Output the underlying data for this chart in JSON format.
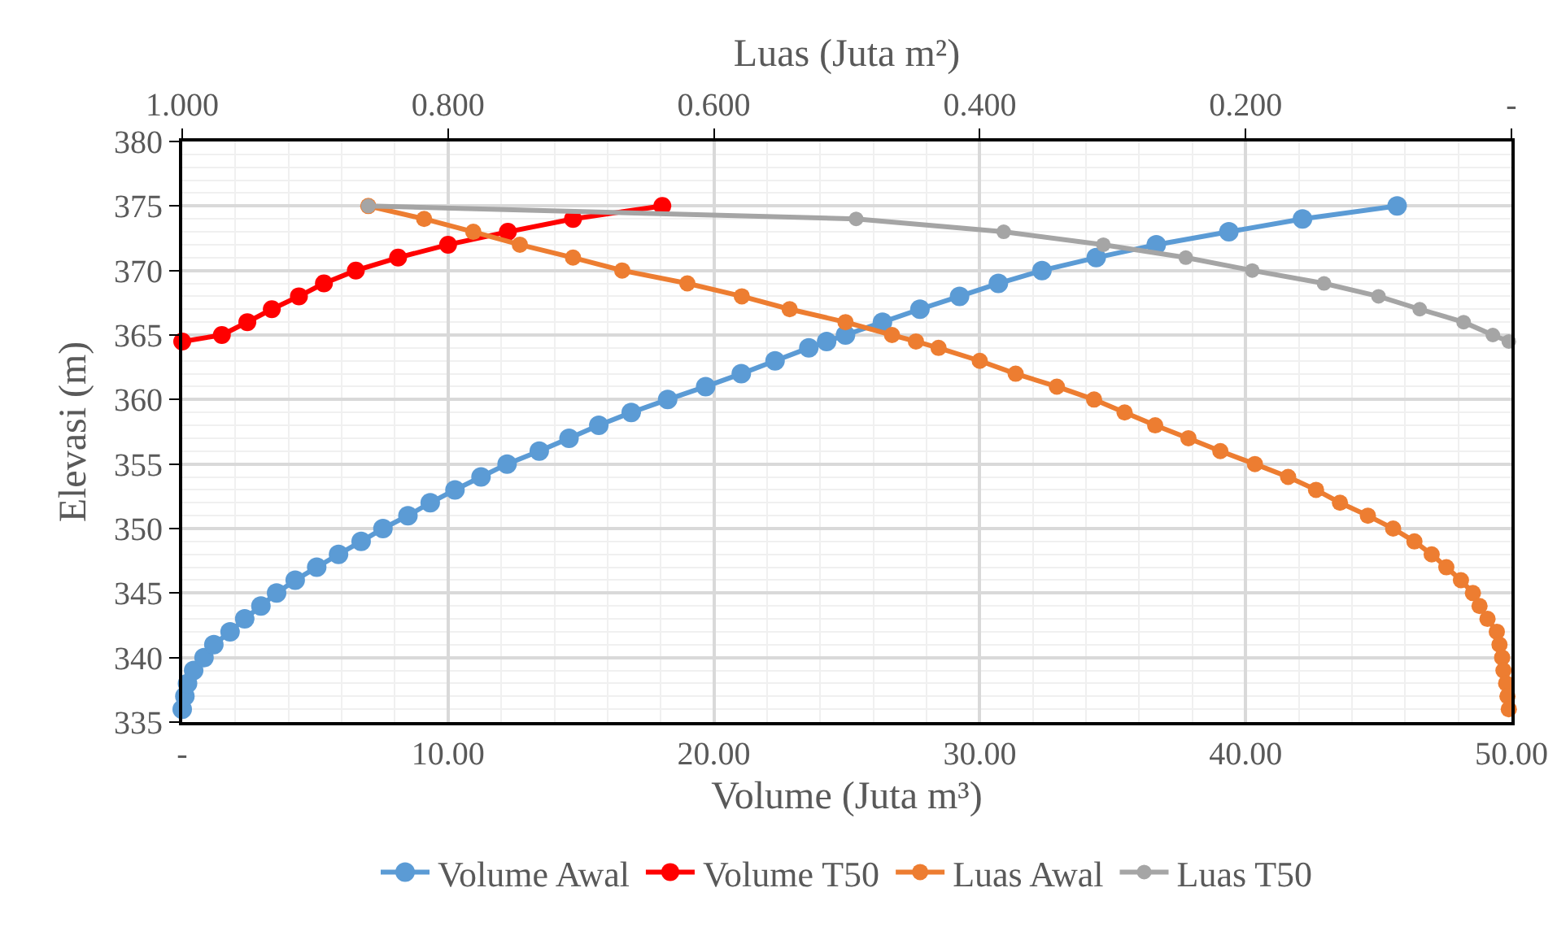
{
  "chart_data": {
    "type": "line",
    "xlabel": "Volume (Juta m³)",
    "x2label": "Luas (Juta m²)",
    "ylabel": "Elevasi (m)",
    "xlim": [
      0,
      50
    ],
    "xticks": [
      {
        "value": 0,
        "label": "-"
      },
      {
        "value": 10,
        "label": "10.00"
      },
      {
        "value": 20,
        "label": "20.00"
      },
      {
        "value": 30,
        "label": "30.00"
      },
      {
        "value": 40,
        "label": "40.00"
      },
      {
        "value": 50,
        "label": "50.00"
      }
    ],
    "x2lim": [
      1,
      0
    ],
    "x2ticks": [
      {
        "value": 1,
        "label": "1.000"
      },
      {
        "value": 0.8,
        "label": "0.800"
      },
      {
        "value": 0.6,
        "label": "0.600"
      },
      {
        "value": 0.4,
        "label": "0.400"
      },
      {
        "value": 0.2,
        "label": "0.200"
      },
      {
        "value": 0,
        "label": "-"
      }
    ],
    "ylim": [
      335,
      380
    ],
    "yticks": [
      335,
      340,
      345,
      350,
      355,
      360,
      365,
      370,
      375,
      380
    ],
    "grid": true,
    "legend": "bottom",
    "marker": "circle",
    "line_style": "solid",
    "series": [
      {
        "name": "Volume Awal",
        "color": "#5b9bd5",
        "x": [
          0,
          0.1,
          0.2,
          0.43,
          0.82,
          1.19,
          1.8,
          2.35,
          2.96,
          3.55,
          4.25,
          5.06,
          5.88,
          6.73,
          7.55,
          8.49,
          9.33,
          10.26,
          11.24,
          12.22,
          13.43,
          14.55,
          15.67,
          16.89,
          18.26,
          19.69,
          21.03,
          22.3,
          23.57,
          24.24,
          24.95,
          26.34,
          27.75,
          29.24,
          30.7,
          32.34,
          34.38,
          36.64,
          39.37,
          42.14,
          45.7
        ],
        "values": [
          336,
          337,
          338,
          339,
          340,
          341,
          342,
          343,
          344,
          345,
          346,
          347,
          348,
          349,
          350,
          351,
          352,
          353,
          354,
          355,
          356,
          357,
          358,
          359,
          360,
          361,
          362,
          363,
          364,
          364.5,
          365,
          366,
          367,
          368,
          369,
          370,
          371,
          372,
          373,
          374,
          375
        ]
      },
      {
        "name": "Volume T50",
        "color": "#ff0000",
        "x": [
          0,
          1.49,
          2.45,
          3.37,
          4.39,
          5.33,
          6.53,
          8.12,
          10.0,
          12.25,
          14.7,
          18.06
        ],
        "values": [
          364.5,
          365,
          366,
          367,
          368,
          369,
          370,
          371,
          372,
          373,
          374,
          375
        ]
      },
      {
        "name": "Luas Awal",
        "color": "#ed7d31",
        "axis": "x2",
        "x": [
          0.86,
          0.818,
          0.781,
          0.746,
          0.706,
          0.669,
          0.62,
          0.579,
          0.543,
          0.501,
          0.466,
          0.448,
          0.431,
          0.4,
          0.373,
          0.342,
          0.314,
          0.291,
          0.268,
          0.243,
          0.219,
          0.193,
          0.168,
          0.147,
          0.129,
          0.108,
          0.089,
          0.073,
          0.06,
          0.049,
          0.038,
          0.029,
          0.024,
          0.018,
          0.011,
          0.009,
          0.007,
          0.006,
          0.004,
          0.003,
          0.002
        ],
        "values": [
          375,
          374,
          373,
          372,
          371,
          370,
          369,
          368,
          367,
          366,
          365,
          364.5,
          364,
          363,
          362,
          361,
          360,
          359,
          358,
          357,
          356,
          355,
          354,
          353,
          352,
          351,
          350,
          349,
          348,
          347,
          346,
          345,
          344,
          343,
          342,
          341,
          340,
          339,
          338,
          337,
          336
        ]
      },
      {
        "name": "Luas T50",
        "color": "#a5a5a5",
        "axis": "x2",
        "x": [
          0.86,
          0.493,
          0.382,
          0.307,
          0.245,
          0.195,
          0.141,
          0.1,
          0.069,
          0.036,
          0.014,
          0.002
        ],
        "values": [
          375,
          374,
          373,
          372,
          371,
          370,
          369,
          368,
          367,
          366,
          365,
          364.5
        ]
      }
    ]
  }
}
